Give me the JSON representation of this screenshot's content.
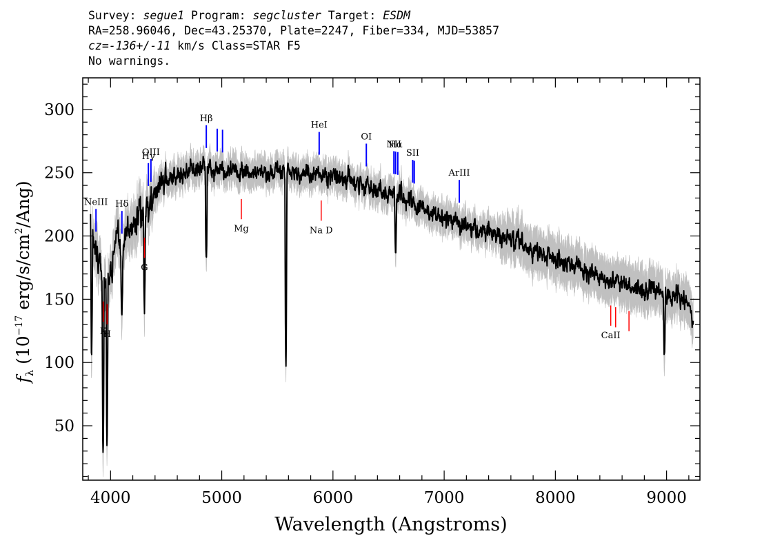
{
  "header": {
    "line1": {
      "survey_label": "Survey:",
      "survey": "segue1",
      "program_label": "Program:",
      "program": "segcluster",
      "target_label": "Target:",
      "target": "ESDM"
    },
    "line2": "RA=258.96046, Dec=43.25370, Plate=2247, Fiber=334, MJD=53857",
    "line3": {
      "cz_label": "cz=",
      "cz_value": "-136+/-11",
      "cz_rest": " km/s Class=STAR F5"
    },
    "line4": "No warnings."
  },
  "chart_data": {
    "type": "line",
    "xlabel": "Wavelength (Angstroms)",
    "ylabel": "f_λ (10^-17 erg/s/cm^2/Ang)",
    "xlim": [
      3750,
      9300
    ],
    "ylim": [
      7,
      325
    ],
    "x_ticks": [
      4000,
      5000,
      6000,
      7000,
      8000,
      9000
    ],
    "y_ticks": [
      50,
      100,
      150,
      200,
      250,
      300
    ],
    "colors": {
      "flux": "#000000",
      "error_band": "#c0c0c0",
      "emission": "#0000ff",
      "absorption": "#ff0000"
    },
    "series": [
      {
        "x": [
          3820,
          3850,
          3900,
          3950,
          4000,
          4050,
          4100,
          4150,
          4200,
          4250,
          4300,
          4350,
          4400,
          4450,
          4500,
          4550,
          4600,
          4650,
          4700,
          4750,
          4800,
          4850,
          4900,
          4950,
          5000,
          5100,
          5200,
          5300,
          5400,
          5500,
          5600,
          5700,
          5800,
          5900,
          6000,
          6100,
          6200,
          6300,
          6400,
          6500,
          6600,
          6700,
          6800,
          6900,
          7000,
          7100,
          7200,
          7300,
          7400,
          7500,
          7600,
          7700,
          7800,
          7900,
          8000,
          8100,
          8200,
          8300,
          8400,
          8500,
          8600,
          8700,
          8800,
          8900,
          9000,
          9100,
          9200,
          9240
        ],
        "y": [
          218,
          195,
          175,
          165,
          168,
          200,
          185,
          205,
          212,
          215,
          218,
          225,
          232,
          240,
          243,
          245,
          248,
          250,
          252,
          252,
          253,
          254,
          252,
          251,
          250,
          250,
          249,
          248,
          250,
          252,
          251,
          250,
          249,
          248,
          247,
          244,
          242,
          239,
          237,
          234,
          232,
          227,
          222,
          217,
          214,
          211,
          209,
          206,
          203,
          200,
          197,
          193,
          189,
          186,
          182,
          180,
          177,
          172,
          168,
          165,
          162,
          160,
          158,
          156,
          153,
          152,
          149,
          130
        ]
      }
    ],
    "features": [
      {
        "wavelength": 3933,
        "label": "K",
        "y": 32
      },
      {
        "wavelength": 3968,
        "label": "H",
        "y": 36
      },
      {
        "wavelength": 3830,
        "label": "",
        "y": 100
      },
      {
        "wavelength": 4102,
        "label": "",
        "y": 145
      },
      {
        "wavelength": 4305,
        "label": "",
        "y": 135
      },
      {
        "wavelength": 4861,
        "label": "",
        "y": 180
      },
      {
        "wavelength": 5577,
        "label": "",
        "y": 93
      },
      {
        "wavelength": 6563,
        "label": "",
        "y": 185
      },
      {
        "wavelength": 8980,
        "label": "",
        "y": 108
      },
      {
        "wavelength": 9250,
        "label": "",
        "y": 110
      }
    ],
    "emission_lines": [
      {
        "label": "NeIII",
        "wavelength": 3869
      },
      {
        "label": "Hδ",
        "wavelength": 4102
      },
      {
        "label": "Hγ",
        "wavelength": 4340
      },
      {
        "label": "OIII",
        "wavelength": 4363
      },
      {
        "label": "Hβ",
        "wavelength": 4861
      },
      {
        "label": "OIII",
        "wavelength": 4959
      },
      {
        "label": "OIII",
        "wavelength": 5007
      },
      {
        "label": "HeI",
        "wavelength": 5876
      },
      {
        "label": "OI",
        "wavelength": 6300
      },
      {
        "label": "NII",
        "wavelength": 6548
      },
      {
        "label": "Hα",
        "wavelength": 6563
      },
      {
        "label": "NII",
        "wavelength": 6583
      },
      {
        "label": "SII",
        "wavelength": 6717
      },
      {
        "label": "SII",
        "wavelength": 6731
      },
      {
        "label": "ArIII",
        "wavelength": 7136
      }
    ],
    "absorption_lines": [
      {
        "label": "K",
        "wavelength": 3934
      },
      {
        "label": "H",
        "wavelength": 3969
      },
      {
        "label": "G",
        "wavelength": 4305
      },
      {
        "label": "Mg",
        "wavelength": 5176
      },
      {
        "label": "Na D",
        "wavelength": 5894
      },
      {
        "label": "CaII",
        "wavelength": 8498
      },
      {
        "label": "CaII",
        "wavelength": 8542
      },
      {
        "label": "CaII",
        "wavelength": 8662
      }
    ]
  }
}
